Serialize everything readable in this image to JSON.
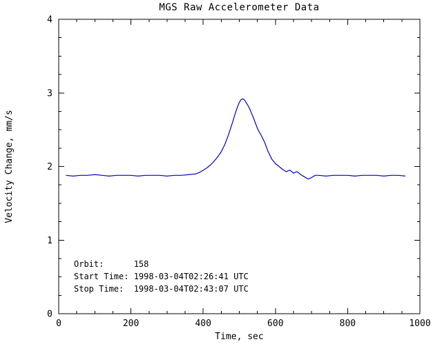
{
  "figure": {
    "background_color": "#ffffff",
    "text_color": "#000000"
  },
  "chart_data": {
    "type": "line",
    "title": "MGS Raw Accelerometer Data",
    "xlabel": "Time, sec",
    "ylabel": "Velocity Change, mm/s",
    "xlim": [
      0,
      1000
    ],
    "ylim": [
      0,
      4
    ],
    "xticks": [
      0,
      200,
      400,
      600,
      800,
      1000
    ],
    "yticks": [
      0,
      1,
      2,
      3,
      4
    ],
    "x_minor_step": 50,
    "y_minor_step": 0.25,
    "grid": false,
    "legend": "none",
    "axis_color": "#000000",
    "line_color": "#0000cc",
    "series": [
      {
        "name": "velocity_change",
        "x": [
          20,
          40,
          60,
          80,
          100,
          120,
          140,
          160,
          180,
          200,
          220,
          240,
          260,
          280,
          300,
          320,
          340,
          360,
          380,
          390,
          400,
          410,
          420,
          430,
          440,
          450,
          460,
          470,
          480,
          490,
          495,
          500,
          505,
          510,
          515,
          520,
          525,
          530,
          540,
          550,
          555,
          560,
          570,
          580,
          590,
          600,
          610,
          620,
          630,
          640,
          650,
          660,
          670,
          680,
          690,
          700,
          710,
          720,
          740,
          760,
          780,
          800,
          820,
          840,
          860,
          880,
          900,
          920,
          940,
          960
        ],
        "y": [
          1.88,
          1.87,
          1.88,
          1.88,
          1.89,
          1.88,
          1.87,
          1.88,
          1.88,
          1.88,
          1.87,
          1.88,
          1.88,
          1.88,
          1.87,
          1.88,
          1.88,
          1.89,
          1.9,
          1.92,
          1.95,
          1.98,
          2.02,
          2.07,
          2.13,
          2.2,
          2.3,
          2.43,
          2.58,
          2.74,
          2.81,
          2.87,
          2.91,
          2.92,
          2.9,
          2.86,
          2.82,
          2.77,
          2.65,
          2.52,
          2.47,
          2.43,
          2.33,
          2.2,
          2.1,
          2.04,
          2.0,
          1.96,
          1.93,
          1.95,
          1.91,
          1.93,
          1.89,
          1.86,
          1.83,
          1.85,
          1.88,
          1.88,
          1.87,
          1.88,
          1.88,
          1.88,
          1.87,
          1.88,
          1.88,
          1.88,
          1.87,
          1.88,
          1.88,
          1.87
        ]
      }
    ],
    "annotations": {
      "lines": [
        "Orbit:      158",
        "Start Time: 1998-03-04T02:26:41 UTC",
        "Stop Time:  1998-03-04T02:43:07 UTC"
      ]
    }
  }
}
